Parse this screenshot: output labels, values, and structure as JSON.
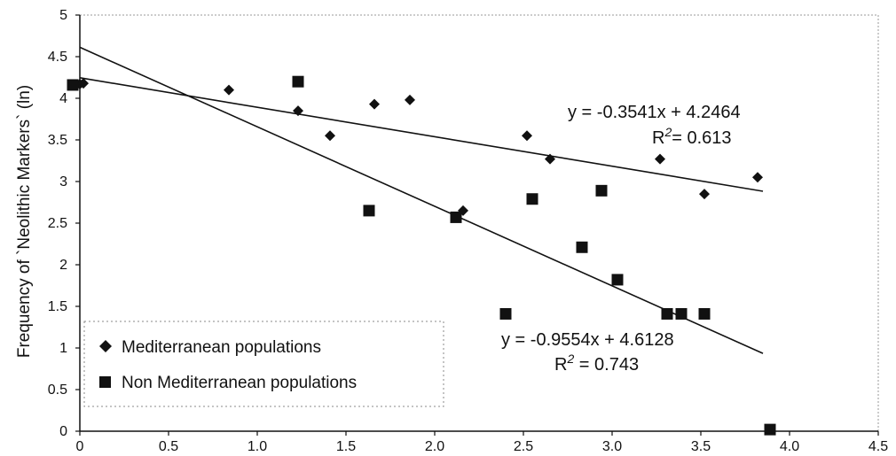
{
  "chart_data": {
    "type": "scatter",
    "title": "",
    "xlabel": "",
    "ylabel": "Frequency of `Neolithic Markers` (ln)",
    "xlim": [
      0,
      4.5
    ],
    "ylim": [
      0,
      5
    ],
    "x_ticks": [
      "0",
      "0.5",
      "1.0",
      "1.5",
      "2.0",
      "2.5",
      "3.0",
      "3.5",
      "4.0",
      "4.5"
    ],
    "y_ticks": [
      "0",
      "0.5",
      "1",
      "1.5",
      "2",
      "2.5",
      "3",
      "3.5",
      "4",
      "4.5",
      "5"
    ],
    "grid": false,
    "legend_position": "bottom-left",
    "series": [
      {
        "name": "Mediterranean populations",
        "marker": "diamond",
        "color": "#111111",
        "points": [
          {
            "x": 0.0,
            "y": 4.17
          },
          {
            "x": 0.02,
            "y": 4.18
          },
          {
            "x": 0.84,
            "y": 4.1
          },
          {
            "x": 1.23,
            "y": 3.85
          },
          {
            "x": 1.41,
            "y": 3.55
          },
          {
            "x": 1.66,
            "y": 3.93
          },
          {
            "x": 1.86,
            "y": 3.98
          },
          {
            "x": 2.16,
            "y": 2.65
          },
          {
            "x": 2.52,
            "y": 3.55
          },
          {
            "x": 2.65,
            "y": 3.27
          },
          {
            "x": 3.27,
            "y": 3.27
          },
          {
            "x": 3.52,
            "y": 2.85
          },
          {
            "x": 3.82,
            "y": 3.05
          }
        ],
        "trendline": {
          "slope": -0.3541,
          "intercept": 4.2464,
          "equation": "y = -0.3541x  + 4.2464",
          "r2_prefix": "R",
          "r2_exp": "2",
          "r2_value": "= 0.613"
        }
      },
      {
        "name": "Non Mediterranean populations",
        "marker": "square",
        "color": "#111111",
        "points": [
          {
            "x": -0.04,
            "y": 4.16
          },
          {
            "x": 1.23,
            "y": 4.2
          },
          {
            "x": 1.63,
            "y": 2.65
          },
          {
            "x": 2.12,
            "y": 2.57
          },
          {
            "x": 2.4,
            "y": 1.41
          },
          {
            "x": 2.55,
            "y": 2.79
          },
          {
            "x": 2.83,
            "y": 2.21
          },
          {
            "x": 2.94,
            "y": 2.89
          },
          {
            "x": 3.03,
            "y": 1.82
          },
          {
            "x": 3.31,
            "y": 1.41
          },
          {
            "x": 3.39,
            "y": 1.41
          },
          {
            "x": 3.52,
            "y": 1.41
          },
          {
            "x": 3.89,
            "y": 0.02
          }
        ],
        "trendline": {
          "slope": -0.9554,
          "intercept": 4.6128,
          "equation": "y = -0.9554x + 4.6128",
          "r2_prefix": "R",
          "r2_exp": "2",
          "r2_value": " = 0.743"
        }
      }
    ]
  }
}
